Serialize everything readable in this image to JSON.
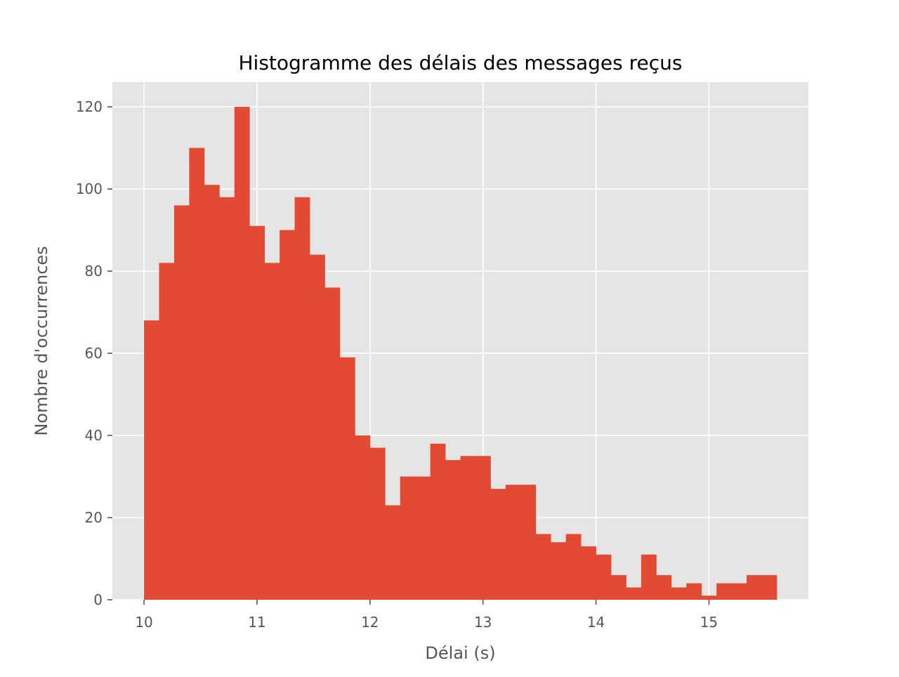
{
  "chart_data": {
    "type": "bar",
    "title": "Histogramme des délais des messages reçus",
    "xlabel": "Délai (s)",
    "ylabel": "Nombre d'occurrences",
    "xlim": [
      9.72,
      15.88
    ],
    "ylim": [
      0,
      126
    ],
    "xticks": [
      10,
      11,
      12,
      13,
      14,
      15
    ],
    "yticks": [
      0,
      20,
      40,
      60,
      80,
      100,
      120
    ],
    "grid": true,
    "bar_color": "#E24A33",
    "background_color": "#E5E5E5",
    "bin_start": 10.0,
    "bin_end": 15.6,
    "values": [
      68,
      82,
      96,
      110,
      101,
      98,
      120,
      91,
      82,
      90,
      98,
      84,
      76,
      59,
      40,
      37,
      23,
      30,
      30,
      38,
      34,
      35,
      35,
      27,
      28,
      28,
      16,
      14,
      16,
      13,
      11,
      6,
      3,
      11,
      6,
      3,
      4,
      1,
      4,
      4,
      6,
      6
    ]
  }
}
